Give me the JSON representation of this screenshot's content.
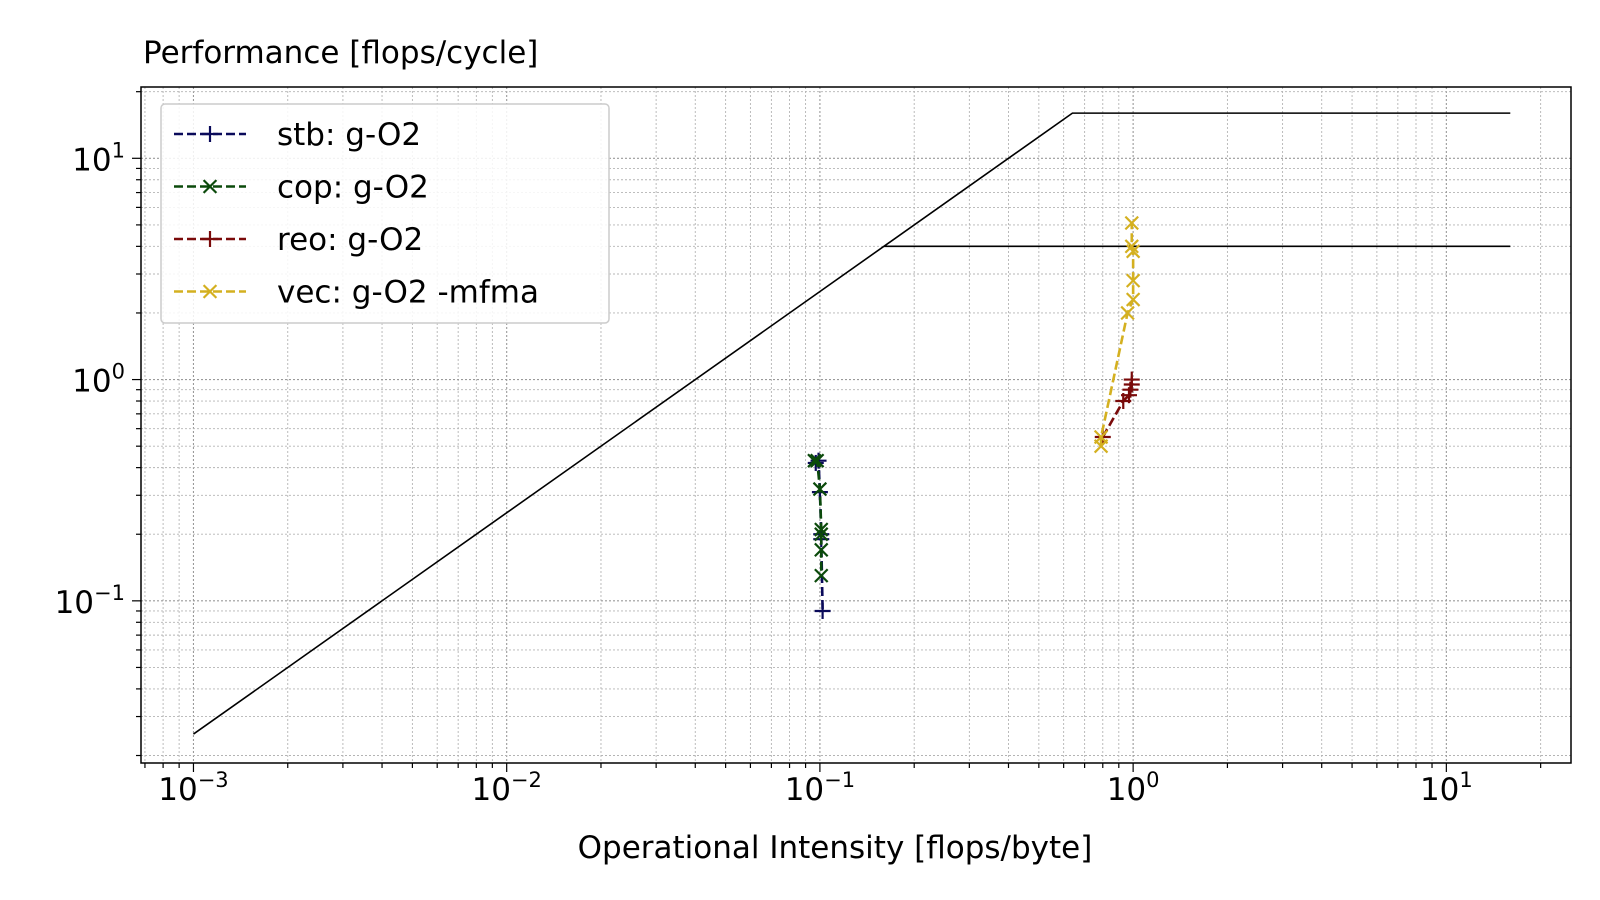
{
  "chart_data": {
    "type": "line",
    "title": "Performance [flops/cycle]",
    "xlabel": "Operational Intensity [flops/byte]",
    "ylabel": "",
    "xscale": "log",
    "yscale": "log",
    "xlim": [
      0.00068,
      25
    ],
    "ylim": [
      0.0185,
      21
    ],
    "grid": "major and minor, dotted",
    "legend_position": "upper-left",
    "x_ticks": [
      {
        "base": "10",
        "exp": "−3",
        "value": 0.001
      },
      {
        "base": "10",
        "exp": "−2",
        "value": 0.01
      },
      {
        "base": "10",
        "exp": "−1",
        "value": 0.1
      },
      {
        "base": "10",
        "exp": "0",
        "value": 1
      },
      {
        "base": "10",
        "exp": "1",
        "value": 10
      }
    ],
    "y_ticks": [
      {
        "base": "10",
        "exp": "−1",
        "value": 0.1
      },
      {
        "base": "10",
        "exp": "0",
        "value": 1
      },
      {
        "base": "10",
        "exp": "1",
        "value": 10
      }
    ],
    "rooflines": [
      {
        "points": [
          [
            0.001,
            0.025
          ],
          [
            0.64,
            16
          ],
          [
            16,
            16
          ]
        ],
        "color": "#000000"
      },
      {
        "points": [
          [
            0.16,
            4
          ],
          [
            16,
            4
          ]
        ],
        "color": "#000000"
      }
    ],
    "series": [
      {
        "name": "stb:  g-O2",
        "color": "#0a0a5a",
        "marker": "plus",
        "points": [
          [
            0.097,
            0.42
          ],
          [
            0.099,
            0.43
          ],
          [
            0.1,
            0.31
          ],
          [
            0.101,
            0.2
          ],
          [
            0.101,
            0.19
          ],
          [
            0.102,
            0.09
          ]
        ]
      },
      {
        "name": "cop:  g-O2",
        "color": "#0b4a0b",
        "marker": "x",
        "points": [
          [
            0.096,
            0.43
          ],
          [
            0.098,
            0.43
          ],
          [
            0.1,
            0.32
          ],
          [
            0.101,
            0.21
          ],
          [
            0.101,
            0.2
          ],
          [
            0.101,
            0.17
          ],
          [
            0.101,
            0.13
          ]
        ]
      },
      {
        "name": "reo:  g-O2",
        "color": "#7a0a0a",
        "marker": "plus",
        "points": [
          [
            0.8,
            0.55
          ],
          [
            0.93,
            0.8
          ],
          [
            0.97,
            0.85
          ],
          [
            0.98,
            0.9
          ],
          [
            0.99,
            0.95
          ],
          [
            0.99,
            1.0
          ]
        ]
      },
      {
        "name": "vec:  g-O2 -mfma",
        "color": "#d4b020",
        "marker": "x",
        "points": [
          [
            0.79,
            0.5
          ],
          [
            0.79,
            0.55
          ],
          [
            0.96,
            2.0
          ],
          [
            1.0,
            2.3
          ],
          [
            1.0,
            2.8
          ],
          [
            1.0,
            3.8
          ],
          [
            0.99,
            4.0
          ],
          [
            0.99,
            5.1
          ]
        ]
      }
    ]
  }
}
